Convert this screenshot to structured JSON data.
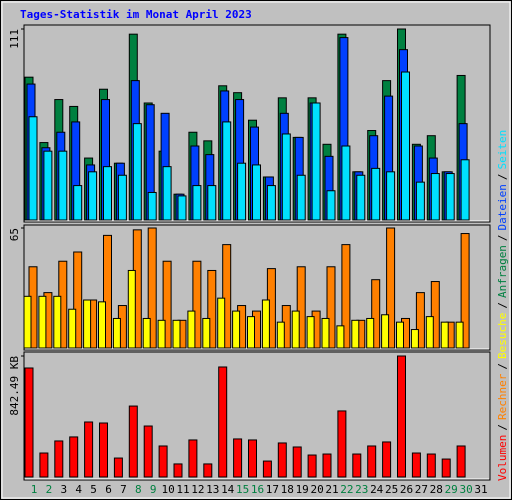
{
  "chart_data": {
    "type": "bar",
    "title": "Tages-Statistik im Monat April 2023",
    "categories": [
      "1",
      "2",
      "3",
      "4",
      "5",
      "6",
      "7",
      "8",
      "9",
      "10",
      "11",
      "12",
      "13",
      "14",
      "15",
      "16",
      "17",
      "18",
      "19",
      "20",
      "21",
      "22",
      "23",
      "24",
      "25",
      "26",
      "27",
      "28",
      "29",
      "30",
      "31"
    ],
    "category_colors": [
      "#008040",
      "#008040",
      "#000000",
      "#000000",
      "#000000",
      "#000000",
      "#000000",
      "#008040",
      "#008040",
      "#000000",
      "#000000",
      "#000000",
      "#000000",
      "#000000",
      "#008040",
      "#008040",
      "#000000",
      "#000000",
      "#000000",
      "#000000",
      "#000000",
      "#008040",
      "#008040",
      "#000000",
      "#000000",
      "#000000",
      "#000000",
      "#000000",
      "#008040",
      "#008040",
      "#000000"
    ],
    "legend_separator": "/",
    "panels": [
      {
        "ylim": [
          0,
          111
        ],
        "yticks": [
          111
        ],
        "series": [
          {
            "name": "Anfragen",
            "color": "#008040",
            "values": [
              83,
              45,
              70,
              66,
              36,
              76,
              33,
              108,
              68,
              40,
              15,
              51,
              46,
              78,
              74,
              58,
              25,
              71,
              48,
              71,
              44,
              108,
              28,
              52,
              81,
              111,
              44,
              49,
              28,
              84,
              null
            ]
          },
          {
            "name": "Dateien",
            "color": "#0040ff",
            "values": [
              79,
              42,
              51,
              57,
              32,
              70,
              33,
              81,
              67,
              62,
              15,
              43,
              38,
              75,
              70,
              54,
              25,
              62,
              48,
              68,
              37,
              106,
              28,
              49,
              72,
              99,
              43,
              36,
              28,
              56,
              null
            ]
          },
          {
            "name": "Seiten",
            "color": "#00e0ff",
            "values": [
              60,
              40,
              40,
              20,
              28,
              31,
              26,
              56,
              16,
              31,
              14,
              20,
              20,
              57,
              33,
              32,
              20,
              50,
              26,
              68,
              17,
              43,
              26,
              30,
              28,
              86,
              22,
              27,
              27,
              35,
              null
            ]
          }
        ]
      },
      {
        "ylim": [
          0,
          65
        ],
        "yticks": [
          65
        ],
        "series": [
          {
            "name": "Rechner",
            "color": "#ff8000",
            "values": [
              44,
              30,
              47,
              52,
              26,
              61,
              23,
              64,
              65,
              47,
              15,
              47,
              42,
              56,
              23,
              20,
              43,
              23,
              44,
              20,
              44,
              56,
              15,
              37,
              65,
              16,
              30,
              36,
              14,
              62,
              null
            ]
          },
          {
            "name": "Besuche",
            "color": "#ffff00",
            "values": [
              28,
              28,
              28,
              21,
              26,
              25,
              16,
              42,
              16,
              15,
              15,
              20,
              16,
              27,
              20,
              17,
              26,
              14,
              20,
              17,
              16,
              12,
              15,
              16,
              18,
              14,
              10,
              17,
              14,
              14,
              null
            ]
          }
        ]
      },
      {
        "ylim": [
          0,
          842.49
        ],
        "yticks": [
          {
            "value": 842.49,
            "label": "842.49 KB"
          }
        ],
        "series": [
          {
            "name": "Volumen",
            "color": "#ff0000",
            "values": [
              759,
              167,
              251,
              279,
              383,
              376,
              132,
              494,
              355,
              216,
              91,
              258,
              91,
              766,
              265,
              258,
              111,
              237,
              209,
              153,
              160,
              460,
              160,
              216,
              244,
              842.49,
              167,
              160,
              125,
              216,
              null
            ]
          }
        ]
      }
    ]
  }
}
